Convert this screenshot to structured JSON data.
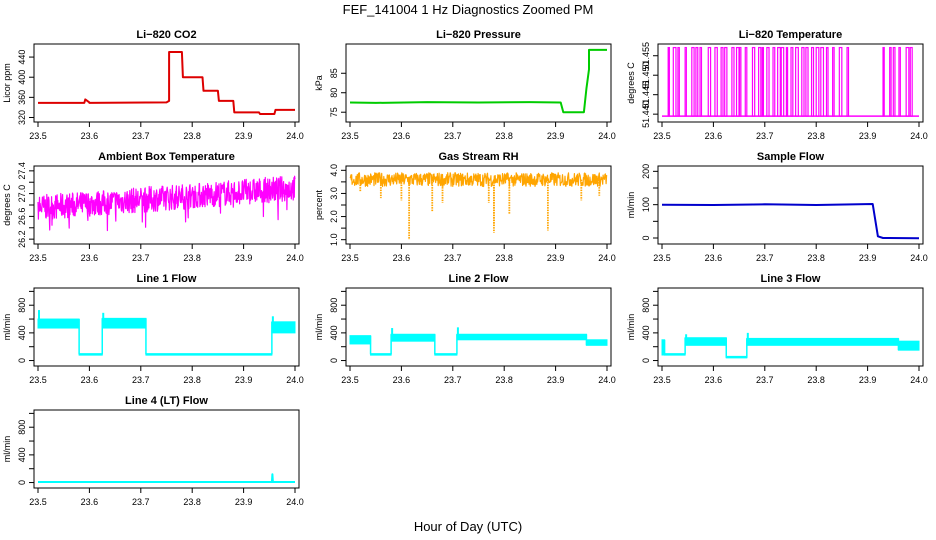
{
  "figure": {
    "title": "FEF_141004  1 Hz Diagnostics Zoomed PM",
    "xlabel": "Hour of Day (UTC)"
  },
  "chart_data": [
    {
      "type": "line",
      "title": "Li−820 CO2",
      "ylabel": "Licor ppm",
      "color": "#dd0000",
      "xlim": [
        23.5,
        24.0
      ],
      "ylim": [
        315,
        462
      ],
      "yticks": [
        320,
        360,
        400,
        440
      ],
      "ytick_labels": [
        "320",
        "360",
        "400",
        "440"
      ],
      "xticks": [
        23.5,
        23.6,
        23.7,
        23.8,
        23.9,
        24.0
      ],
      "xtick_labels": [
        "23.5",
        "23.6",
        "23.7",
        "23.8",
        "23.9",
        "24.0"
      ],
      "series": [
        {
          "x": [
            23.5,
            23.59,
            23.592,
            23.6,
            23.6,
            23.75,
            23.755,
            23.755,
            23.78,
            23.782,
            23.82,
            23.822,
            23.85,
            23.852,
            23.88,
            23.882,
            23.93,
            23.932,
            23.96,
            23.962,
            24.0
          ],
          "y": [
            349,
            349,
            356,
            350,
            349,
            350,
            353,
            450,
            450,
            400,
            400,
            373,
            373,
            353,
            353,
            330,
            330,
            327,
            327,
            335,
            335
          ]
        }
      ]
    },
    {
      "type": "line",
      "title": "Li−820 Pressure",
      "ylabel": "kPa",
      "color": "#00cc00",
      "xlim": [
        23.5,
        24.0
      ],
      "ylim": [
        73,
        92
      ],
      "yticks": [
        75,
        80,
        85
      ],
      "ytick_labels": [
        "75",
        "80",
        "85"
      ],
      "xticks": [
        23.5,
        23.6,
        23.7,
        23.8,
        23.9,
        24.0
      ],
      "xtick_labels": [
        "23.5",
        "23.6",
        "23.7",
        "23.8",
        "23.9",
        "24.0"
      ],
      "series": [
        {
          "x": [
            23.5,
            23.55,
            23.65,
            23.75,
            23.85,
            23.91,
            23.915,
            23.955,
            23.96,
            23.965,
            23.965,
            24.0
          ],
          "y": [
            77.5,
            77.4,
            77.6,
            77.5,
            77.6,
            77.5,
            75.0,
            75.0,
            81.0,
            86.0,
            91.0,
            91.0
          ]
        }
      ]
    },
    {
      "type": "line",
      "title": "Li−820 Temperature",
      "ylabel": "degrees C",
      "color": "#ff00ff",
      "xlim": [
        23.5,
        24.0
      ],
      "ylim": [
        51.4385,
        51.4575
      ],
      "yticks": [
        51.44,
        51.445,
        51.45,
        51.455
      ],
      "ytick_labels": [
        "51.440",
        "51.445",
        "51.450",
        "51.455"
      ],
      "xticks": [
        23.5,
        23.6,
        23.7,
        23.8,
        23.9,
        24.0
      ],
      "xtick_labels": [
        "23.5",
        "23.6",
        "23.7",
        "23.8",
        "23.9",
        "24.0"
      ],
      "states": [
        51.4395,
        51.4571
      ],
      "spikes": [
        23.512,
        23.522,
        23.531,
        23.545,
        23.558,
        23.566,
        23.574,
        23.59,
        23.603,
        23.615,
        23.622,
        23.636,
        23.645,
        23.651,
        23.662,
        23.676,
        23.688,
        23.695,
        23.704,
        23.716,
        23.725,
        23.732,
        23.742,
        23.751,
        23.76,
        23.772,
        23.78,
        23.791,
        23.8,
        23.809,
        23.82,
        23.832,
        23.845,
        23.86,
        23.93,
        23.943,
        23.95,
        23.961,
        23.975,
        23.983
      ]
    },
    {
      "type": "line",
      "title": "Ambient Box Temperature",
      "ylabel": "degrees C",
      "color": "#ff00ff",
      "xlim": [
        23.5,
        24.0
      ],
      "ylim": [
        26.15,
        27.45
      ],
      "yticks": [
        26.2,
        26.4,
        26.6,
        26.8,
        27.0,
        27.2,
        27.4
      ],
      "ytick_labels": [
        "26.2",
        "",
        "26.6",
        "",
        "27.0",
        "",
        "27.4"
      ],
      "xticks": [
        23.5,
        23.6,
        23.7,
        23.8,
        23.9,
        24.0
      ],
      "xtick_labels": [
        "23.5",
        "23.6",
        "23.7",
        "23.8",
        "23.9",
        "24.0"
      ],
      "noise": {
        "start_mean": 26.75,
        "end_mean": 27.1,
        "spread": 0.32,
        "min": 26.2,
        "max": 27.4
      }
    },
    {
      "type": "line",
      "title": "Gas Stream RH",
      "ylabel": "percent",
      "color": "#ffa500",
      "xlim": [
        23.5,
        24.0
      ],
      "ylim": [
        0.9,
        4.1
      ],
      "yticks": [
        1.0,
        1.5,
        2.0,
        2.5,
        3.0,
        3.5,
        4.0
      ],
      "ytick_labels": [
        "1.0",
        "",
        "2.0",
        "",
        "3.0",
        "",
        "4.0"
      ],
      "xticks": [
        23.5,
        23.6,
        23.7,
        23.8,
        23.9,
        24.0
      ],
      "xtick_labels": [
        "23.5",
        "23.6",
        "23.7",
        "23.8",
        "23.9",
        "24.0"
      ],
      "noise": {
        "mean": 3.6,
        "spread": 0.3
      },
      "dips": [
        [
          23.52,
          3.1
        ],
        [
          23.56,
          2.8
        ],
        [
          23.6,
          2.7
        ],
        [
          23.615,
          1.0
        ],
        [
          23.66,
          2.2
        ],
        [
          23.68,
          2.6
        ],
        [
          23.77,
          2.6
        ],
        [
          23.78,
          1.6
        ],
        [
          23.78,
          1.3
        ],
        [
          23.81,
          2.1
        ],
        [
          23.885,
          1.4
        ],
        [
          23.95,
          2.7
        ],
        [
          23.985,
          2.9
        ]
      ]
    },
    {
      "type": "line",
      "title": "Sample Flow",
      "ylabel": "ml/min",
      "color": "#0000cc",
      "xlim": [
        23.5,
        24.0
      ],
      "ylim": [
        -12,
        210
      ],
      "yticks": [
        0,
        50,
        100,
        150,
        200
      ],
      "ytick_labels": [
        "0",
        "",
        "100",
        "",
        "200"
      ],
      "xticks": [
        23.5,
        23.6,
        23.7,
        23.8,
        23.9,
        24.0
      ],
      "xtick_labels": [
        "23.5",
        "23.6",
        "23.7",
        "23.8",
        "23.9",
        "24.0"
      ],
      "series": [
        {
          "x": [
            23.5,
            23.6,
            23.7,
            23.8,
            23.91,
            23.92,
            23.93,
            24.0
          ],
          "y": [
            100,
            99,
            101,
            99,
            102,
            5,
            0,
            -1
          ]
        }
      ]
    },
    {
      "type": "line",
      "title": "Line 1 Flow",
      "ylabel": "ml/min",
      "color": "#00ffff",
      "xlim": [
        23.5,
        24.0
      ],
      "ylim": [
        -50,
        1020
      ],
      "yticks": [
        0,
        200,
        400,
        600,
        800,
        1000
      ],
      "ytick_labels": [
        "0",
        "",
        "400",
        "",
        "800",
        ""
      ],
      "xticks": [
        23.5,
        23.6,
        23.7,
        23.8,
        23.9,
        24.0
      ],
      "xtick_labels": [
        "23.5",
        "23.6",
        "23.7",
        "23.8",
        "23.9",
        "24.0"
      ],
      "segments": [
        {
          "x0": 23.5,
          "x1": 23.58,
          "lo": 470,
          "hi": 600,
          "spike": 730
        },
        {
          "x0": 23.58,
          "x1": 23.625,
          "lo": 90,
          "hi": 100
        },
        {
          "x0": 23.625,
          "x1": 23.71,
          "lo": 470,
          "hi": 610,
          "spike": 690
        },
        {
          "x0": 23.71,
          "x1": 23.955,
          "lo": 90,
          "hi": 100
        },
        {
          "x0": 23.955,
          "x1": 24.0,
          "lo": 400,
          "hi": 560,
          "spike": 640
        }
      ]
    },
    {
      "type": "line",
      "title": "Line 2 Flow",
      "ylabel": "ml/min",
      "color": "#00ffff",
      "xlim": [
        23.5,
        24.0
      ],
      "ylim": [
        -50,
        1020
      ],
      "yticks": [
        0,
        200,
        400,
        600,
        800,
        1000
      ],
      "ytick_labels": [
        "0",
        "",
        "400",
        "",
        "800",
        ""
      ],
      "xticks": [
        23.5,
        23.6,
        23.7,
        23.8,
        23.9,
        24.0
      ],
      "xtick_labels": [
        "23.5",
        "23.6",
        "23.7",
        "23.8",
        "23.9",
        "24.0"
      ],
      "segments": [
        {
          "x0": 23.5,
          "x1": 23.54,
          "lo": 240,
          "hi": 360
        },
        {
          "x0": 23.54,
          "x1": 23.58,
          "lo": 90,
          "hi": 100
        },
        {
          "x0": 23.58,
          "x1": 23.665,
          "lo": 280,
          "hi": 380,
          "spike": 470
        },
        {
          "x0": 23.665,
          "x1": 23.708,
          "lo": 90,
          "hi": 100
        },
        {
          "x0": 23.708,
          "x1": 23.96,
          "lo": 300,
          "hi": 380,
          "spike": 480
        },
        {
          "x0": 23.96,
          "x1": 24.0,
          "lo": 220,
          "hi": 300
        }
      ]
    },
    {
      "type": "line",
      "title": "Line 3 Flow",
      "ylabel": "ml/min",
      "color": "#00ffff",
      "xlim": [
        23.5,
        24.0
      ],
      "ylim": [
        -50,
        1020
      ],
      "yticks": [
        0,
        200,
        400,
        600,
        800,
        1000
      ],
      "ytick_labels": [
        "0",
        "",
        "400",
        "",
        "800",
        ""
      ],
      "xticks": [
        23.5,
        23.6,
        23.7,
        23.8,
        23.9,
        24.0
      ],
      "xtick_labels": [
        "23.5",
        "23.6",
        "23.7",
        "23.8",
        "23.9",
        "24.0"
      ],
      "segments": [
        {
          "x0": 23.5,
          "x1": 23.505,
          "lo": 80,
          "hi": 300
        },
        {
          "x0": 23.505,
          "x1": 23.545,
          "lo": 90,
          "hi": 100
        },
        {
          "x0": 23.545,
          "x1": 23.625,
          "lo": 220,
          "hi": 330,
          "spike": 380
        },
        {
          "x0": 23.625,
          "x1": 23.665,
          "lo": 40,
          "hi": 60
        },
        {
          "x0": 23.665,
          "x1": 23.96,
          "lo": 220,
          "hi": 320,
          "spike": 400
        },
        {
          "x0": 23.96,
          "x1": 24.0,
          "lo": 150,
          "hi": 280
        }
      ]
    },
    {
      "type": "line",
      "title": "Line 4 (LT) Flow",
      "ylabel": "ml/min",
      "color": "#00ffff",
      "xlim": [
        23.5,
        24.0
      ],
      "ylim": [
        -50,
        1020
      ],
      "yticks": [
        0,
        200,
        400,
        600,
        800,
        1000
      ],
      "ytick_labels": [
        "0",
        "",
        "400",
        "",
        "800",
        ""
      ],
      "xticks": [
        23.5,
        23.6,
        23.7,
        23.8,
        23.9,
        24.0
      ],
      "xtick_labels": [
        "23.5",
        "23.6",
        "23.7",
        "23.8",
        "23.9",
        "24.0"
      ],
      "series": [
        {
          "x": [
            23.5,
            23.955,
            23.956,
            23.957,
            23.958,
            24.0
          ],
          "y": [
            8,
            8,
            120,
            8,
            8,
            8
          ]
        }
      ]
    }
  ]
}
